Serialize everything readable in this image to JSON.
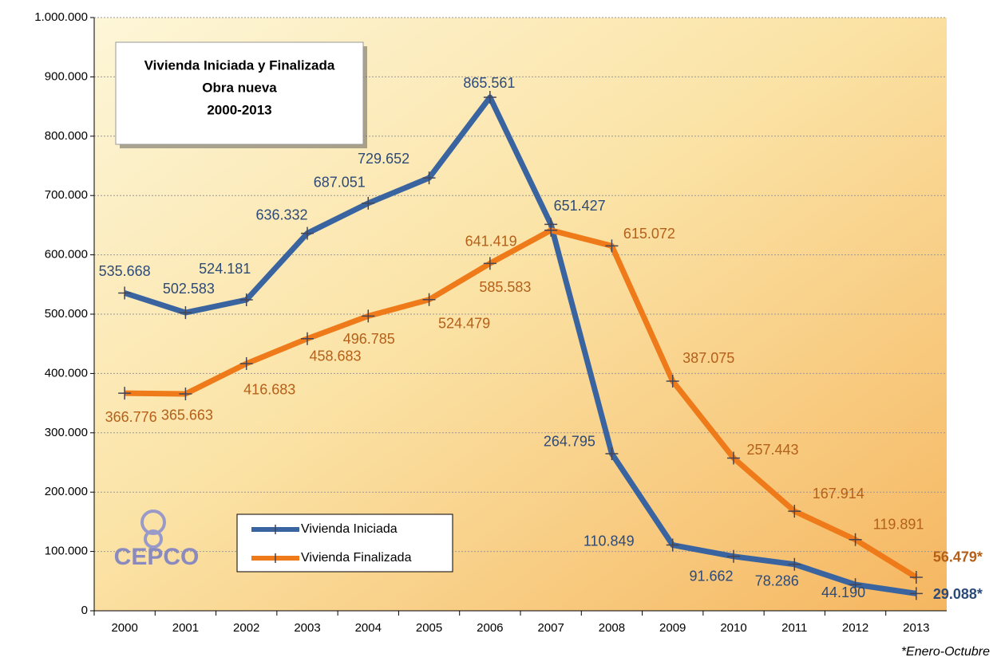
{
  "chart_data": {
    "type": "line",
    "title": [
      "Vivienda Iniciada y Finalizada",
      "Obra nueva",
      "2000-2013"
    ],
    "categories": [
      "2000",
      "2001",
      "2002",
      "2003",
      "2004",
      "2005",
      "2006",
      "2007",
      "2008",
      "2009",
      "2010",
      "2011",
      "2012",
      "2013"
    ],
    "series": [
      {
        "name": "Vivienda Iniciada",
        "color": "#3a64a0",
        "values": [
          535668,
          502583,
          524181,
          636332,
          687051,
          729652,
          865561,
          651427,
          264795,
          110849,
          91662,
          78286,
          44190,
          29088
        ],
        "value_labels": [
          "535.668",
          "502.583",
          "524.181",
          "636.332",
          "687.051",
          "729.652",
          "865.561",
          "651.427",
          "264.795",
          "110.849",
          "91.662",
          "78.286",
          "44.190",
          "29.088*"
        ]
      },
      {
        "name": "Vivienda Finalizada",
        "color": "#ee7a1a",
        "values": [
          366776,
          365663,
          416683,
          458683,
          496785,
          524479,
          585583,
          641419,
          615072,
          387075,
          257443,
          167914,
          119891,
          56479
        ],
        "value_labels": [
          "366.776",
          "365.663",
          "416.683",
          "458.683",
          "496.785",
          "524.479",
          "585.583",
          "641.419",
          "615.072",
          "387.075",
          "257.443",
          "167.914",
          "119.891",
          "56.479*"
        ]
      }
    ],
    "ylim": [
      0,
      1000000
    ],
    "yticks": [
      0,
      {
        "value": 100000,
        "label": "100.000"
      },
      {
        "value": 200000,
        "label": "200.000"
      },
      {
        "value": 300000,
        "label": "300.000"
      },
      {
        "value": 400000,
        "label": "400.000"
      },
      {
        "value": 500000,
        "label": "500.000"
      },
      {
        "value": 600000,
        "label": "600.000"
      },
      {
        "value": 700000,
        "label": "700.000"
      },
      {
        "value": 800000,
        "label": "800.000"
      },
      {
        "value": 900000,
        "label": "900.000"
      },
      {
        "value": 1000000,
        "label": "1.000.000"
      }
    ],
    "grid": true,
    "legend": "bottom-left",
    "logo": "CEPCO",
    "footnote": "*Enero-Octubre"
  }
}
